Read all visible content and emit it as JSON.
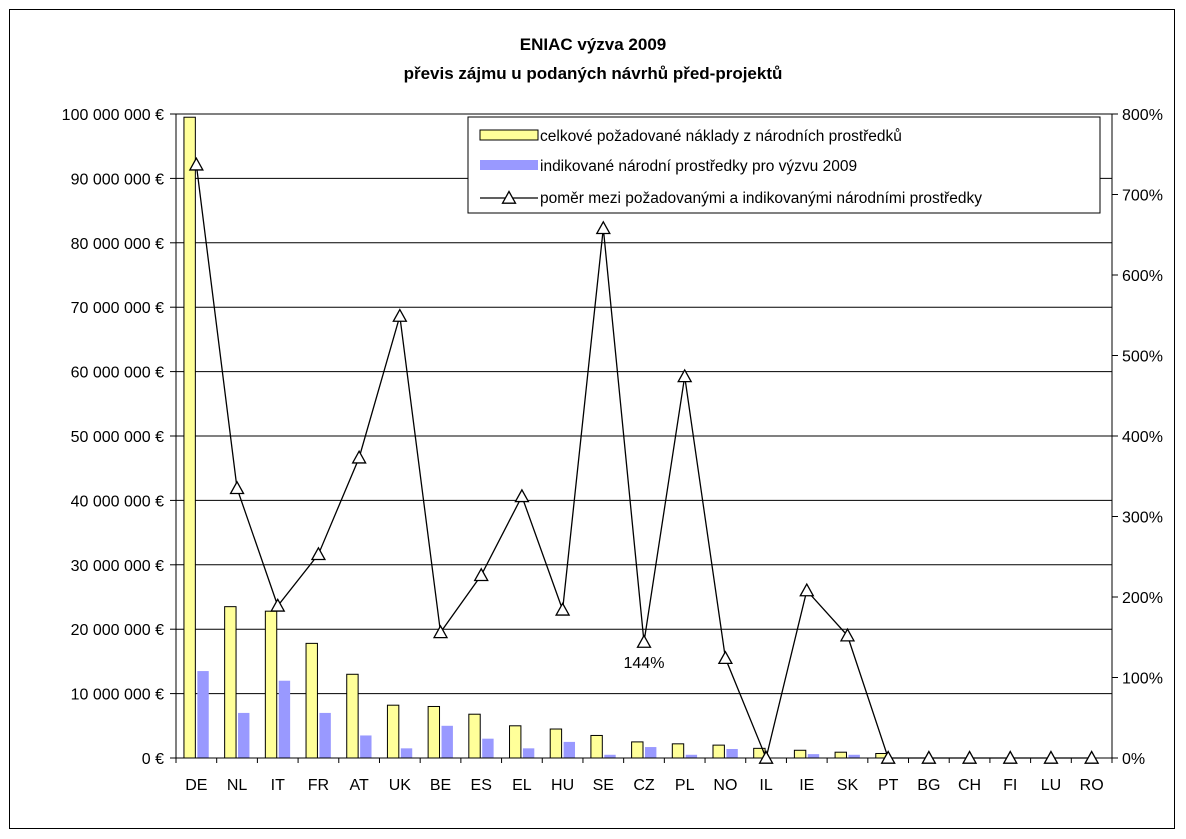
{
  "chart_data": {
    "type": "bar",
    "title": "ENIAC výzva 2009",
    "subtitle": "převis zájmu u podaných návrhů před-projektů",
    "categories": [
      "DE",
      "NL",
      "IT",
      "FR",
      "AT",
      "UK",
      "BE",
      "ES",
      "EL",
      "HU",
      "SE",
      "CZ",
      "PL",
      "NO",
      "IL",
      "IE",
      "SK",
      "PT",
      "BG",
      "CH",
      "FI",
      "LU",
      "RO"
    ],
    "series": [
      {
        "name": "celkové požadované náklady z národních prostředků",
        "type": "bar",
        "axis": "left",
        "color": "#ffff99",
        "stroke": "#000000",
        "values": [
          99500000,
          23500000,
          22800000,
          17800000,
          13000000,
          8200000,
          8000000,
          6800000,
          5000000,
          4500000,
          3500000,
          2500000,
          2200000,
          2000000,
          1500000,
          1200000,
          900000,
          700000,
          0,
          0,
          0,
          0,
          0
        ]
      },
      {
        "name": "indikované národní prostředky pro výzvu 2009",
        "type": "bar",
        "axis": "left",
        "color": "#9999ff",
        "values": [
          13500000,
          7000000,
          12000000,
          7000000,
          3500000,
          1500000,
          5000000,
          3000000,
          1500000,
          2500000,
          500000,
          1700000,
          500000,
          1400000,
          0,
          600000,
          500000,
          0,
          0,
          0,
          0,
          0,
          0
        ]
      },
      {
        "name": "poměr mezi požadovanými a indikovanými národními prostředky",
        "type": "line",
        "axis": "right",
        "color": "#000000",
        "marker": "triangle",
        "values": [
          737,
          335,
          189,
          253,
          373,
          549,
          156,
          227,
          325,
          184,
          658,
          144,
          474,
          124,
          0,
          208,
          152,
          0,
          0,
          0,
          0,
          0,
          0
        ]
      }
    ],
    "y_left": {
      "min": 0,
      "max": 100000000,
      "step": 10000000,
      "tick_labels": [
        "0 €",
        "10 000 000 €",
        "20 000 000 €",
        "30 000 000 €",
        "40 000 000 €",
        "50 000 000 €",
        "60 000 000 €",
        "70 000 000 €",
        "80 000 000 €",
        "90 000 000 €",
        "100 000 000 €"
      ]
    },
    "y_right": {
      "min": 0,
      "max": 800,
      "step": 100,
      "tick_labels": [
        "0%",
        "100%",
        "200%",
        "300%",
        "400%",
        "500%",
        "600%",
        "700%",
        "800%"
      ]
    },
    "grid": true,
    "legend_position": "top-right",
    "annotations": [
      {
        "text": "144%",
        "category": "CZ",
        "series": 2
      }
    ]
  }
}
